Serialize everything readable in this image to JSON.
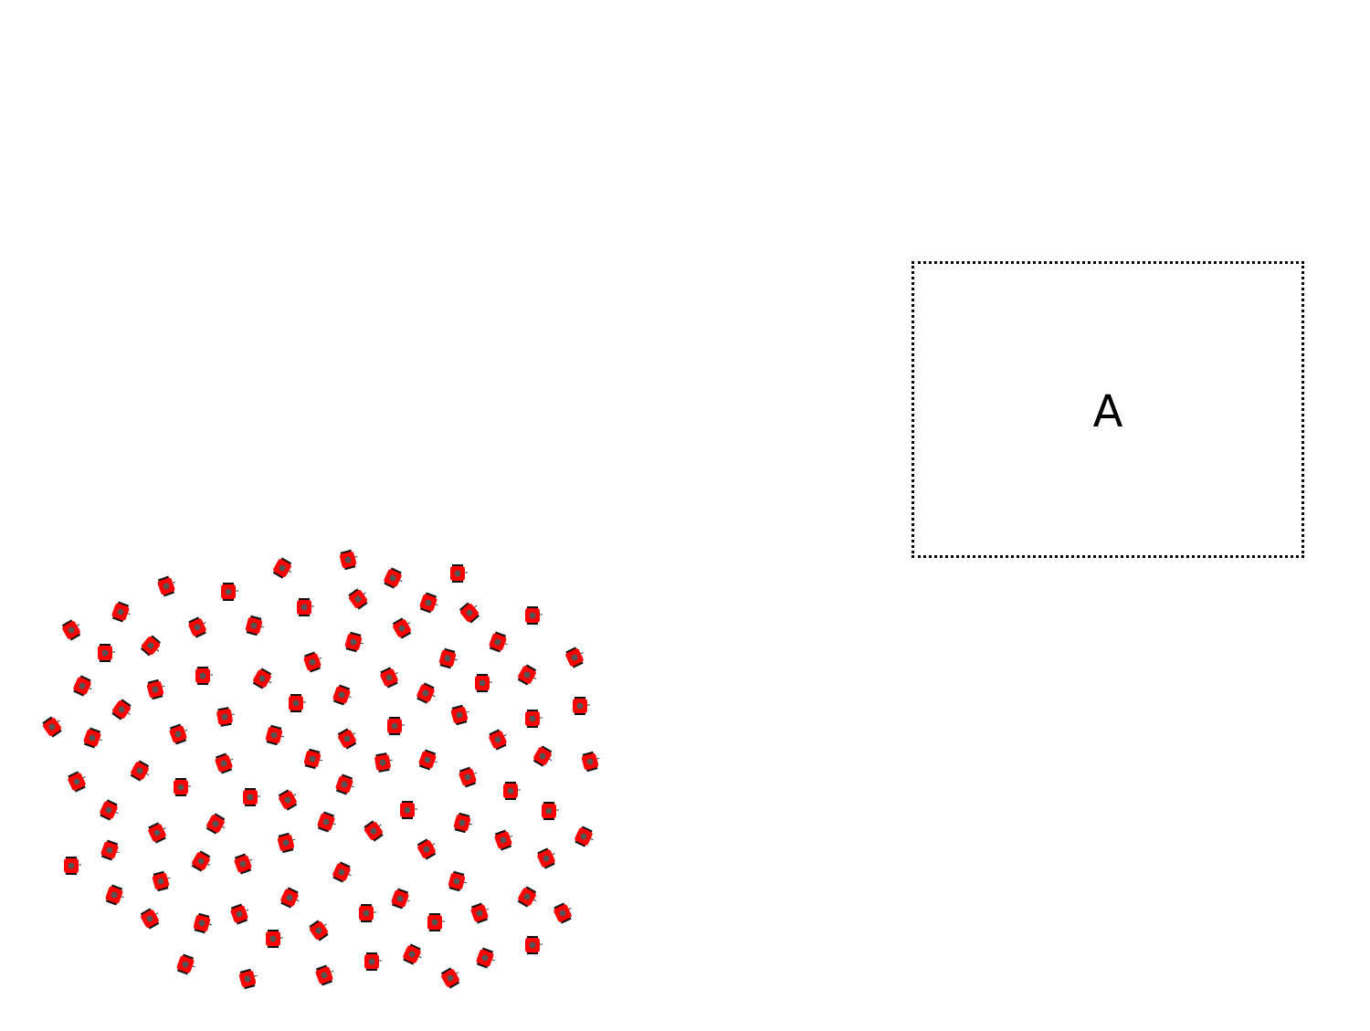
{
  "target_zone": {
    "label": "A"
  },
  "colors": {
    "robot_body": "#ff0000",
    "robot_core": "#555555",
    "robot_wheel": "#111111",
    "zone_border": "#000000"
  },
  "robot_icon": "robot-icon",
  "robots": [
    [
      78,
      690,
      -30
    ],
    [
      132,
      670,
      20
    ],
    [
      182,
      642,
      -20
    ],
    [
      250,
      648,
      0
    ],
    [
      309,
      622,
      30
    ],
    [
      381,
      613,
      -15
    ],
    [
      430,
      633,
      25
    ],
    [
      501,
      628,
      0
    ],
    [
      115,
      715,
      0
    ],
    [
      165,
      707,
      40
    ],
    [
      216,
      687,
      -25
    ],
    [
      278,
      685,
      15
    ],
    [
      333,
      665,
      0
    ],
    [
      392,
      656,
      -35
    ],
    [
      469,
      660,
      20
    ],
    [
      514,
      671,
      -40
    ],
    [
      583,
      674,
      0
    ],
    [
      90,
      751,
      25
    ],
    [
      170,
      755,
      -15
    ],
    [
      222,
      740,
      0
    ],
    [
      287,
      743,
      30
    ],
    [
      342,
      725,
      -20
    ],
    [
      387,
      703,
      15
    ],
    [
      440,
      688,
      -30
    ],
    [
      545,
      703,
      20
    ],
    [
      629,
      720,
      -25
    ],
    [
      133,
      777,
      35
    ],
    [
      246,
      785,
      -10
    ],
    [
      324,
      770,
      0
    ],
    [
      374,
      761,
      20
    ],
    [
      426,
      742,
      -25
    ],
    [
      490,
      721,
      15
    ],
    [
      528,
      748,
      0
    ],
    [
      577,
      739,
      30
    ],
    [
      57,
      796,
      -35
    ],
    [
      101,
      808,
      20
    ],
    [
      195,
      804,
      -20
    ],
    [
      300,
      805,
      15
    ],
    [
      380,
      809,
      -30
    ],
    [
      432,
      795,
      0
    ],
    [
      466,
      759,
      25
    ],
    [
      503,
      783,
      -15
    ],
    [
      583,
      787,
      0
    ],
    [
      635,
      773,
      0
    ],
    [
      84,
      856,
      -25
    ],
    [
      153,
      844,
      30
    ],
    [
      245,
      836,
      -20
    ],
    [
      342,
      831,
      15
    ],
    [
      419,
      835,
      -10
    ],
    [
      468,
      832,
      20
    ],
    [
      545,
      810,
      -25
    ],
    [
      594,
      828,
      30
    ],
    [
      646,
      834,
      -15
    ],
    [
      119,
      887,
      25
    ],
    [
      198,
      862,
      0
    ],
    [
      274,
      873,
      0
    ],
    [
      315,
      876,
      -30
    ],
    [
      377,
      859,
      20
    ],
    [
      446,
      887,
      0
    ],
    [
      512,
      851,
      -20
    ],
    [
      559,
      866,
      0
    ],
    [
      601,
      888,
      0
    ],
    [
      172,
      912,
      -25
    ],
    [
      236,
      902,
      30
    ],
    [
      313,
      923,
      -15
    ],
    [
      357,
      900,
      20
    ],
    [
      409,
      910,
      -35
    ],
    [
      506,
      901,
      15
    ],
    [
      551,
      920,
      -20
    ],
    [
      639,
      916,
      25
    ],
    [
      78,
      948,
      0
    ],
    [
      120,
      931,
      20
    ],
    [
      176,
      965,
      -15
    ],
    [
      220,
      943,
      30
    ],
    [
      266,
      946,
      -20
    ],
    [
      374,
      955,
      25
    ],
    [
      467,
      930,
      -30
    ],
    [
      500,
      965,
      15
    ],
    [
      598,
      940,
      -25
    ],
    [
      125,
      980,
      20
    ],
    [
      164,
      1006,
      -30
    ],
    [
      221,
      1011,
      15
    ],
    [
      262,
      1001,
      -20
    ],
    [
      317,
      983,
      25
    ],
    [
      349,
      1019,
      -35
    ],
    [
      401,
      1000,
      0
    ],
    [
      438,
      984,
      20
    ],
    [
      476,
      1010,
      0
    ],
    [
      525,
      1000,
      -20
    ],
    [
      577,
      982,
      30
    ],
    [
      616,
      1000,
      -25
    ],
    [
      203,
      1056,
      20
    ],
    [
      271,
      1072,
      -15
    ],
    [
      299,
      1028,
      0
    ],
    [
      355,
      1068,
      -20
    ],
    [
      407,
      1053,
      0
    ],
    [
      451,
      1045,
      25
    ],
    [
      493,
      1071,
      -30
    ],
    [
      531,
      1049,
      20
    ],
    [
      583,
      1035,
      0
    ]
  ]
}
